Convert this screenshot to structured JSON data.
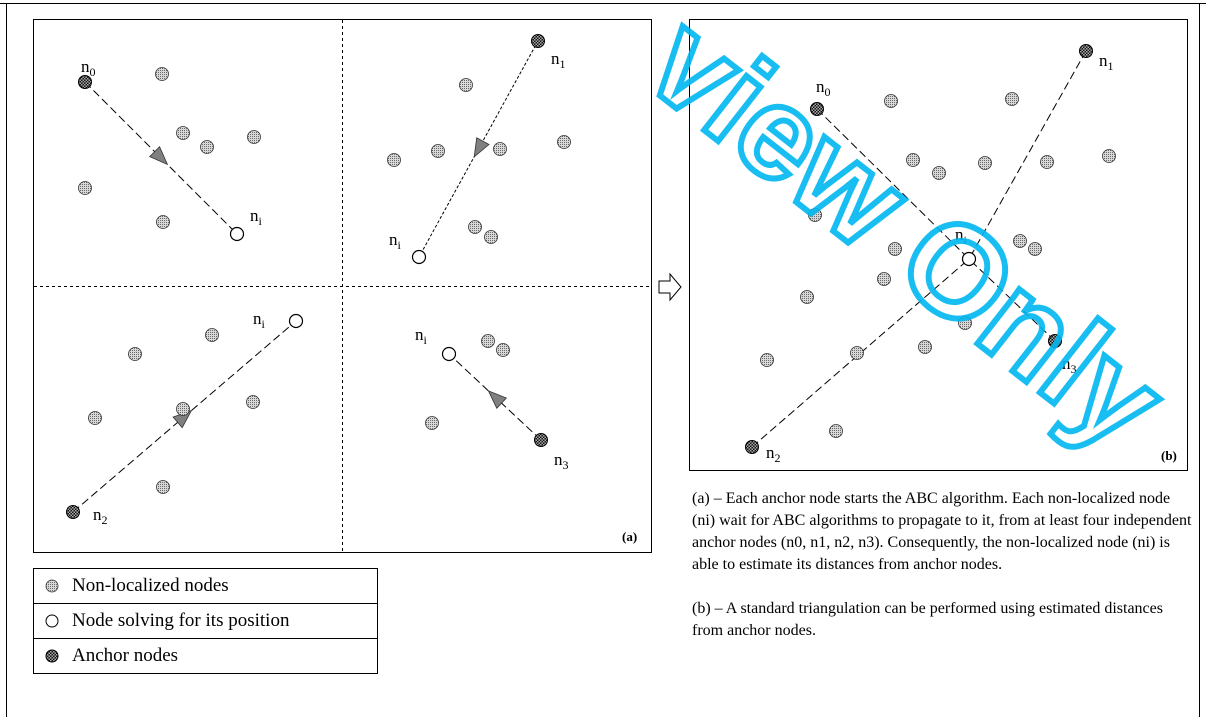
{
  "panel_a": {
    "tag": "(a)",
    "quadrants": [
      {
        "anchor_label": "n",
        "anchor_sub": "0",
        "target_label": "n",
        "target_sub": "i"
      },
      {
        "anchor_label": "n",
        "anchor_sub": "1",
        "target_label": "n",
        "target_sub": "i"
      },
      {
        "anchor_label": "n",
        "anchor_sub": "2",
        "target_label": "n",
        "target_sub": "i"
      },
      {
        "anchor_label": "n",
        "anchor_sub": "3",
        "target_label": "n",
        "target_sub": "i"
      }
    ]
  },
  "panel_b": {
    "tag": "(b)",
    "center_label": "n",
    "center_sub": "i",
    "anchors": [
      {
        "label": "n",
        "sub": "0"
      },
      {
        "label": "n",
        "sub": "1"
      },
      {
        "label": "n",
        "sub": "2"
      },
      {
        "label": "n",
        "sub": "3"
      }
    ]
  },
  "arrow_icon": "hollow-right-arrow",
  "legend": {
    "items": [
      {
        "icon": "non-localized-node-icon",
        "label": "Non-localized nodes"
      },
      {
        "icon": "solving-node-icon",
        "label": "Node solving for its position"
      },
      {
        "icon": "anchor-node-icon",
        "label": "Anchor nodes"
      }
    ]
  },
  "caption": {
    "a": "(a) – Each anchor node starts the ABC algorithm. Each non-localized node (ni) wait for ABC algorithms to propagate to it, from at least four independent anchor nodes (n0, n1, n2, n3). Consequently, the non-localized node (ni) is able to estimate its distances from anchor nodes.",
    "b": "(b) – A standard triangulation can be performed using estimated distances from anchor nodes."
  },
  "watermark": "view Only",
  "colors": {
    "watermark": "#00b7f0",
    "non_localized_fill": "#c8c8c8",
    "anchor_fill": "#1a1a1a",
    "arrowhead_fill": "#808080"
  }
}
